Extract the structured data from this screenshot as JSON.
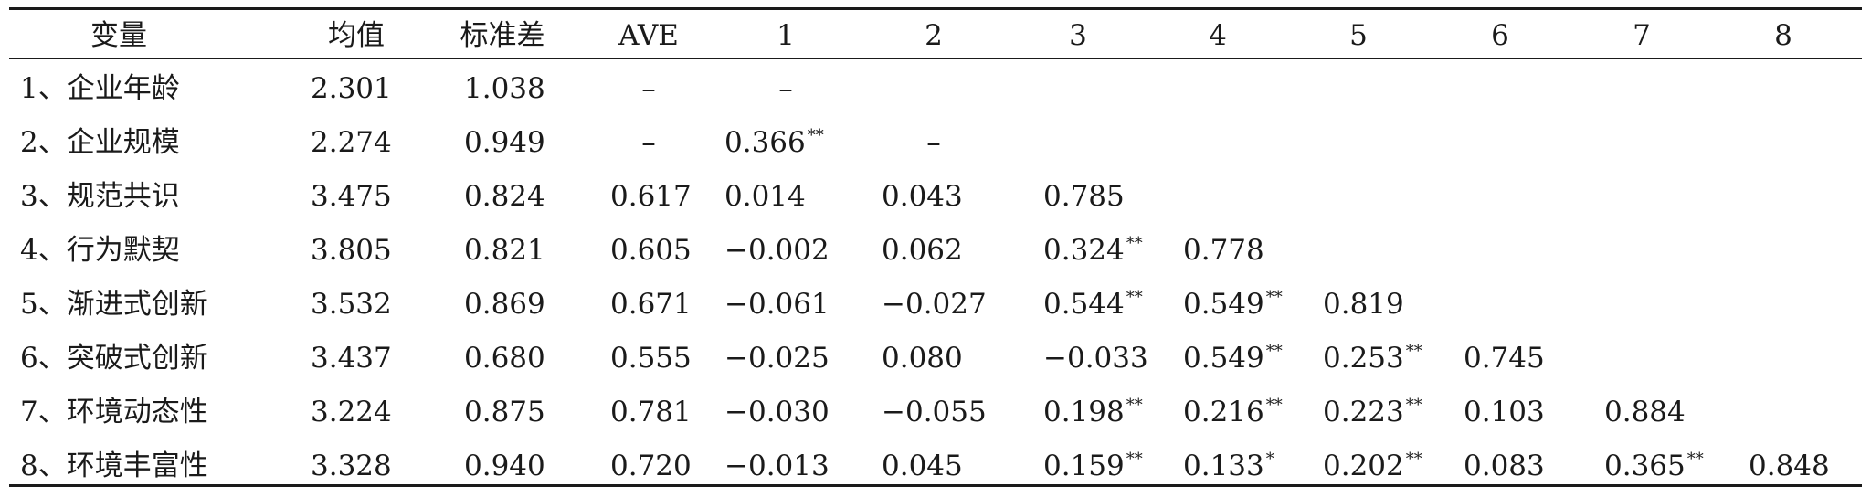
{
  "table": {
    "headers": [
      "变量",
      "均值",
      "标准差",
      "AVE",
      "1",
      "2",
      "3",
      "4",
      "5",
      "6",
      "7",
      "8"
    ],
    "rows": [
      [
        "1、企业年龄",
        "2.301",
        "1.038",
        "–",
        "–",
        "",
        "",
        "",
        "",
        "",
        "",
        ""
      ],
      [
        "2、企业规模",
        "2.274",
        "0.949",
        "–",
        "0.366",
        "–",
        "",
        "",
        "",
        "",
        "",
        ""
      ],
      [
        "3、规范共识",
        "3.475",
        "0.824",
        "0.617",
        "0.014",
        "0.043",
        "0.785",
        "",
        "",
        "",
        "",
        ""
      ],
      [
        "4、行为默契",
        "3.805",
        "0.821",
        "0.605",
        "−0.002",
        "0.062",
        "0.324",
        "0.778",
        "",
        "",
        "",
        ""
      ],
      [
        "5、渐进式创新",
        "3.532",
        "0.869",
        "0.671",
        "−0.061",
        "−0.027",
        "0.544",
        "0.549",
        "0.819",
        "",
        "",
        ""
      ],
      [
        "6、突破式创新",
        "3.437",
        "0.680",
        "0.555",
        "−0.025",
        "0.080",
        "−0.033",
        "0.549",
        "0.253",
        "0.745",
        "",
        ""
      ],
      [
        "7、环境动态性",
        "3.224",
        "0.875",
        "0.781",
        "−0.030",
        "−0.055",
        "0.198",
        "0.216",
        "0.223",
        "0.103",
        "0.884",
        ""
      ],
      [
        "8、环境丰富性",
        "3.328",
        "0.940",
        "0.720",
        "−0.013",
        "0.045",
        "0.159",
        "0.133",
        "0.202",
        "0.083",
        "0.365",
        "0.848"
      ]
    ],
    "sig": [
      [
        "",
        "",
        "",
        "",
        "",
        "",
        "",
        "",
        "",
        "",
        "",
        ""
      ],
      [
        "",
        "",
        "",
        "",
        "**",
        "",
        "",
        "",
        "",
        "",
        "",
        ""
      ],
      [
        "",
        "",
        "",
        "",
        "",
        "",
        "",
        "",
        "",
        "",
        "",
        ""
      ],
      [
        "",
        "",
        "",
        "",
        "",
        "",
        "**",
        "",
        "",
        "",
        "",
        ""
      ],
      [
        "",
        "",
        "",
        "",
        "",
        "",
        "**",
        "**",
        "",
        "",
        "",
        ""
      ],
      [
        "",
        "",
        "",
        "",
        "",
        "",
        "",
        "**",
        "**",
        "",
        "",
        ""
      ],
      [
        "",
        "",
        "",
        "",
        "",
        "",
        "**",
        "**",
        "**",
        "",
        "",
        ""
      ],
      [
        "",
        "",
        "",
        "",
        "",
        "",
        "**",
        "*",
        "**",
        "",
        "**",
        ""
      ]
    ]
  }
}
